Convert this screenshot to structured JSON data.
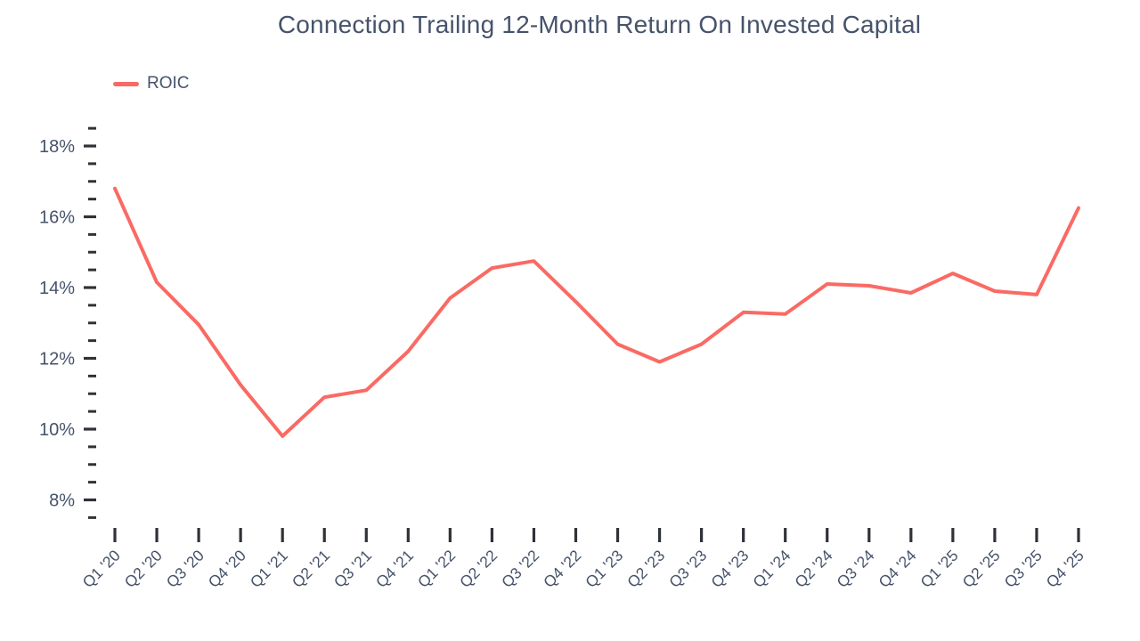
{
  "title": "Connection Trailing 12-Month Return On Invested Capital",
  "legend": {
    "items": [
      {
        "label": "ROIC",
        "color": "#FA6A64"
      }
    ]
  },
  "colors": {
    "line": "#FA6A64",
    "text": "#46536B",
    "tick": "#2F3237",
    "background": "#FFFFFF"
  },
  "chart_data": {
    "type": "line",
    "title": "Connection Trailing 12-Month Return On Invested Capital",
    "categories": [
      "Q1 '20",
      "Q2 '20",
      "Q3 '20",
      "Q4 '20",
      "Q1 '21",
      "Q2 '21",
      "Q3 '21",
      "Q4 '21",
      "Q1 '22",
      "Q2 '22",
      "Q3 '22",
      "Q4 '22",
      "Q1 '23",
      "Q2 '23",
      "Q3 '23",
      "Q4 '23",
      "Q1 '24",
      "Q2 '24",
      "Q3 '24",
      "Q4 '24",
      "Q1 '25",
      "Q2 '25",
      "Q3 '25",
      "Q4 '25"
    ],
    "series": [
      {
        "name": "ROIC",
        "color": "#FA6A64",
        "values": [
          16.8,
          14.15,
          12.95,
          11.25,
          9.8,
          10.9,
          11.1,
          12.2,
          13.7,
          14.55,
          14.75,
          13.6,
          12.4,
          11.9,
          12.4,
          13.3,
          13.25,
          14.1,
          14.05,
          13.85,
          14.4,
          13.9,
          13.8,
          16.25
        ]
      }
    ],
    "xlabel": "",
    "ylabel": "",
    "y_axis": {
      "min": 7.5,
      "max": 18.5,
      "major_ticks": [
        8,
        10,
        12,
        14,
        16,
        18
      ],
      "major_tick_labels": [
        "8%",
        "10%",
        "12%",
        "14%",
        "16%",
        "18%"
      ],
      "minor_step": 0.5,
      "tick_suffix": "%"
    },
    "grid": false,
    "axis_lines": false,
    "legend_position": "top-left",
    "x_label_rotation": -45
  }
}
